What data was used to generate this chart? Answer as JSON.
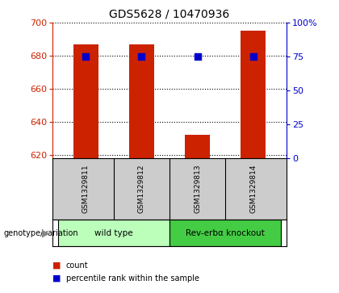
{
  "title": "GDS5628 / 10470936",
  "samples": [
    "GSM1329811",
    "GSM1329812",
    "GSM1329813",
    "GSM1329814"
  ],
  "counts": [
    687,
    687,
    632,
    695
  ],
  "percentiles": [
    75,
    75,
    75,
    75
  ],
  "ylim_left": [
    618,
    700
  ],
  "ylim_right": [
    0,
    100
  ],
  "yticks_left": [
    620,
    640,
    660,
    680,
    700
  ],
  "yticks_right": [
    0,
    25,
    50,
    75,
    100
  ],
  "ytick_labels_right": [
    "0",
    "25",
    "50",
    "75",
    "100%"
  ],
  "bar_color": "#cc2200",
  "dot_color": "#0000cc",
  "bar_width": 0.45,
  "groups": [
    {
      "label": "wild type",
      "samples": [
        0,
        1
      ],
      "color": "#bbffbb"
    },
    {
      "label": "Rev-erbα knockout",
      "samples": [
        2,
        3
      ],
      "color": "#44cc44"
    }
  ],
  "genotype_label": "genotype/variation",
  "legend_items": [
    {
      "color": "#cc2200",
      "label": "count"
    },
    {
      "color": "#0000cc",
      "label": "percentile rank within the sample"
    }
  ],
  "axis_color_left": "#cc2200",
  "axis_color_right": "#0000cc",
  "bg_color": "#ffffff",
  "plot_bg_color": "#ffffff",
  "label_bg_color": "#cccccc",
  "grid_linestyle": "dotted",
  "grid_linewidth": 0.8
}
